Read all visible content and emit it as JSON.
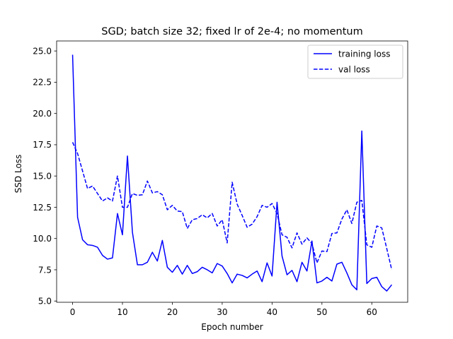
{
  "chart_data": {
    "type": "line",
    "title": "SGD; batch size 32; fixed lr of 2e-4; no momentum",
    "xlabel": "Epoch number",
    "ylabel": "SSD Loss",
    "xlim": [
      -3.2,
      67.2
    ],
    "ylim": [
      4.9,
      25.8
    ],
    "xticks": [
      0,
      10,
      20,
      30,
      40,
      50,
      60
    ],
    "yticks": [
      5.0,
      7.5,
      10.0,
      12.5,
      15.0,
      17.5,
      20.0,
      22.5,
      25.0
    ],
    "ytick_labels": [
      "5.0",
      "7.5",
      "10.0",
      "12.5",
      "15.0",
      "17.5",
      "20.0",
      "22.5",
      "25.0"
    ],
    "grid": false,
    "legend_position": "top-right",
    "x": [
      0,
      1,
      2,
      3,
      4,
      5,
      6,
      7,
      8,
      9,
      10,
      11,
      12,
      13,
      14,
      15,
      16,
      17,
      18,
      19,
      20,
      21,
      22,
      23,
      24,
      25,
      26,
      27,
      28,
      29,
      30,
      31,
      32,
      33,
      34,
      35,
      36,
      37,
      38,
      39,
      40,
      41,
      42,
      43,
      44,
      45,
      46,
      47,
      48,
      49,
      50,
      51,
      52,
      53,
      54,
      55,
      56,
      57,
      58,
      59,
      60,
      61,
      62,
      63,
      64
    ],
    "series": [
      {
        "name": "training loss",
        "color": "#0000ff",
        "dash": "solid",
        "values": [
          24.7,
          11.7,
          9.9,
          9.5,
          9.45,
          9.3,
          8.65,
          8.35,
          8.45,
          12.0,
          10.3,
          16.6,
          10.5,
          7.9,
          7.9,
          8.1,
          8.9,
          8.2,
          9.85,
          7.7,
          7.3,
          7.85,
          7.15,
          7.85,
          7.2,
          7.35,
          7.7,
          7.5,
          7.25,
          8.0,
          7.8,
          7.2,
          6.45,
          7.15,
          7.05,
          6.85,
          7.15,
          7.4,
          6.55,
          8.05,
          7.0,
          12.9,
          8.6,
          7.1,
          7.45,
          6.55,
          8.1,
          7.4,
          9.8,
          6.45,
          6.6,
          6.9,
          6.6,
          7.95,
          8.1,
          7.25,
          6.3,
          5.9,
          18.6,
          6.4,
          6.8,
          6.9,
          6.15,
          5.8,
          6.3
        ]
      },
      {
        "name": "val loss",
        "color": "#0000ff",
        "dash": "dashed",
        "values": [
          17.7,
          16.8,
          15.4,
          14.0,
          14.2,
          13.6,
          13.0,
          13.25,
          13.0,
          15.0,
          12.5,
          12.5,
          13.6,
          13.45,
          13.5,
          14.6,
          13.65,
          13.75,
          13.5,
          12.3,
          12.65,
          12.2,
          12.15,
          10.8,
          11.5,
          11.6,
          11.9,
          11.65,
          12.0,
          11.0,
          11.5,
          9.65,
          14.5,
          12.75,
          11.85,
          10.9,
          11.15,
          11.75,
          12.65,
          12.5,
          12.8,
          12.0,
          10.3,
          10.1,
          9.25,
          10.45,
          9.55,
          10.05,
          9.6,
          8.05,
          9.0,
          8.95,
          10.4,
          10.45,
          11.55,
          12.3,
          11.2,
          12.9,
          13.05,
          9.5,
          9.3,
          11.0,
          10.85,
          9.2,
          7.5
        ]
      }
    ]
  }
}
